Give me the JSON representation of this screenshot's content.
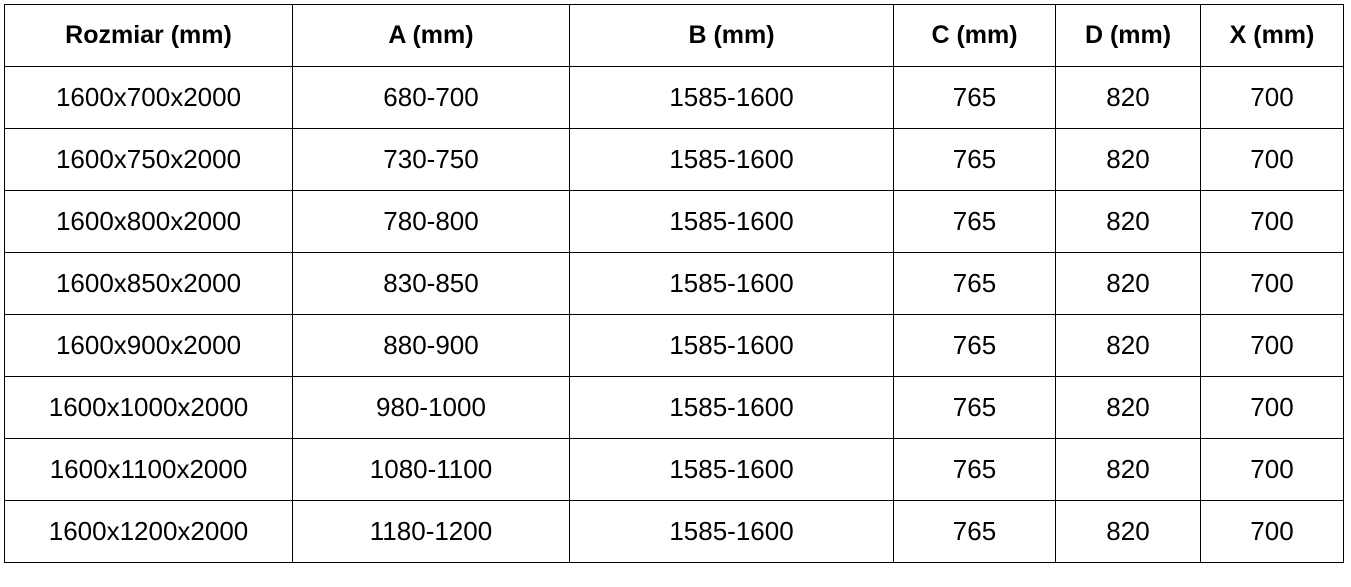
{
  "headers": [
    "Rozmiar (mm)",
    "A (mm)",
    "B (mm)",
    "C (mm)",
    "D (mm)",
    "X (mm)"
  ],
  "rows": [
    [
      "1600x700x2000",
      "680-700",
      "1585-1600",
      "765",
      "820",
      "700"
    ],
    [
      "1600x750x2000",
      "730-750",
      "1585-1600",
      "765",
      "820",
      "700"
    ],
    [
      "1600x800x2000",
      "780-800",
      "1585-1600",
      "765",
      "820",
      "700"
    ],
    [
      "1600x850x2000",
      "830-850",
      "1585-1600",
      "765",
      "820",
      "700"
    ],
    [
      "1600x900x2000",
      "880-900",
      "1585-1600",
      "765",
      "820",
      "700"
    ],
    [
      "1600x1000x2000",
      "980-1000",
      "1585-1600",
      "765",
      "820",
      "700"
    ],
    [
      "1600x1100x2000",
      "1080-1100",
      "1585-1600",
      "765",
      "820",
      "700"
    ],
    [
      "1600x1200x2000",
      "1180-1200",
      "1585-1600",
      "765",
      "820",
      "700"
    ]
  ]
}
